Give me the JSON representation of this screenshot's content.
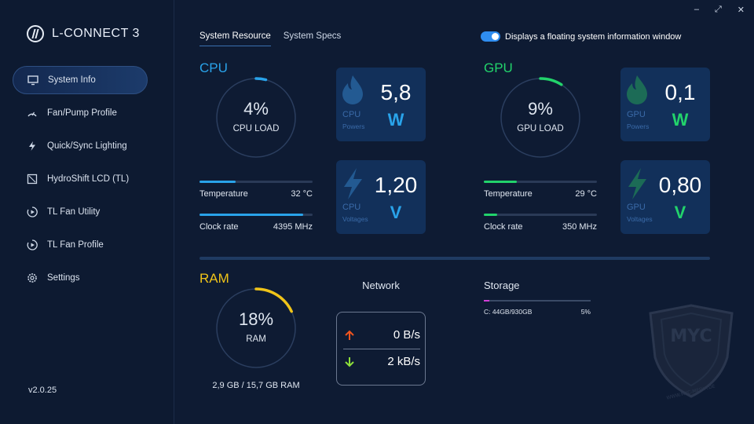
{
  "app": {
    "name": "L-CONNECT 3",
    "version": "v2.0.25"
  },
  "window_controls": {
    "minimize": "–",
    "maximize": "⤢",
    "close": "✕"
  },
  "sidebar": {
    "items": [
      {
        "label": "System Info",
        "icon": "monitor-icon",
        "active": true
      },
      {
        "label": "Fan/Pump Profile",
        "icon": "gauge-icon"
      },
      {
        "label": "Quick/Sync Lighting",
        "icon": "lightning-icon"
      },
      {
        "label": "HydroShift LCD (TL)",
        "icon": "lcd-icon"
      },
      {
        "label": "TL Fan Utility",
        "icon": "fan-utility-icon"
      },
      {
        "label": "TL Fan Profile",
        "icon": "fan-profile-icon"
      },
      {
        "label": "Settings",
        "icon": "gear-icon"
      }
    ]
  },
  "tabs": [
    {
      "label": "System Resource",
      "active": true
    },
    {
      "label": "System Specs",
      "active": false
    }
  ],
  "floating_toggle": {
    "label": "Displays a floating system information window",
    "on": true
  },
  "colors": {
    "cpu": "#29a3ea",
    "gpu": "#22d36b",
    "ram": "#f0c419",
    "upload": "#f0541e",
    "download": "#8ee03a",
    "storage": "#d13fd6"
  },
  "cpu": {
    "title": "CPU",
    "load_pct": 4,
    "load_text": "4%",
    "load_label": "CPU LOAD",
    "temperature_label": "Temperature",
    "temperature_value": "32 °C",
    "temperature_fraction": 0.32,
    "clock_label": "Clock rate",
    "clock_value": "4395 MHz",
    "clock_fraction": 0.92,
    "power": {
      "value": "5,8",
      "unit": "W",
      "label1": "CPU",
      "label2": "Powers"
    },
    "voltage": {
      "value": "1,20",
      "unit": "V",
      "label1": "CPU",
      "label2": "Voltages"
    }
  },
  "gpu": {
    "title": "GPU",
    "load_pct": 9,
    "load_text": "9%",
    "load_label": "GPU LOAD",
    "temperature_label": "Temperature",
    "temperature_value": "29 °C",
    "temperature_fraction": 0.29,
    "clock_label": "Clock rate",
    "clock_value": "350 MHz",
    "clock_fraction": 0.12,
    "power": {
      "value": "0,1",
      "unit": "W",
      "label1": "GPU",
      "label2": "Powers"
    },
    "voltage": {
      "value": "0,80",
      "unit": "V",
      "label1": "GPU",
      "label2": "Voltages"
    }
  },
  "ram": {
    "title": "RAM",
    "load_pct": 18,
    "load_text": "18%",
    "load_label": "RAM",
    "caption": "2,9 GB / 15,7 GB RAM"
  },
  "network": {
    "title": "Network",
    "upload": "0 B/s",
    "download": "2 kB/s"
  },
  "storage": {
    "title": "Storage",
    "drives": [
      {
        "label": "C: 44GB/930GB",
        "percent": "5%",
        "fraction": 0.05
      }
    ]
  },
  "watermark": {
    "text": "MYC",
    "url_text": "WWW.MYC-MEDIA.DE"
  }
}
